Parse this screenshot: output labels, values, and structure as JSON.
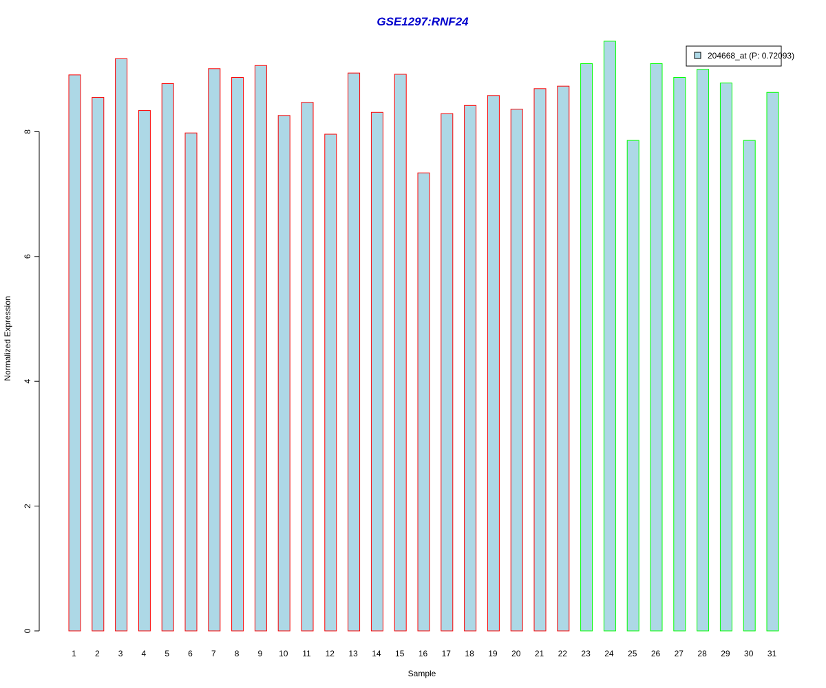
{
  "chart_data": {
    "type": "bar",
    "title": "GSE1297:RNF24",
    "xlabel": "Sample",
    "ylabel": "Normalized Expression",
    "ylim": [
      0,
      9.5
    ],
    "yticks": [
      0,
      2,
      4,
      6,
      8
    ],
    "grid": false,
    "legend": {
      "label": "204668_at (P: 0.72093)",
      "placement": "top-right"
    },
    "colors": {
      "title": "#0000cc",
      "bar_fill": "#add8e6",
      "group_a_border": "#ff0000",
      "group_b_border": "#00ff00"
    },
    "categories": [
      "1",
      "2",
      "3",
      "4",
      "5",
      "6",
      "7",
      "8",
      "9",
      "10",
      "11",
      "12",
      "13",
      "14",
      "15",
      "16",
      "17",
      "18",
      "19",
      "20",
      "21",
      "22",
      "23",
      "24",
      "25",
      "26",
      "27",
      "28",
      "29",
      "30",
      "31"
    ],
    "values": [
      8.91,
      8.55,
      9.17,
      8.34,
      8.77,
      7.98,
      9.01,
      8.87,
      9.06,
      8.26,
      8.47,
      7.96,
      8.94,
      8.31,
      8.92,
      7.34,
      8.29,
      8.42,
      8.58,
      8.36,
      8.69,
      8.73,
      9.09,
      9.45,
      7.86,
      9.09,
      8.87,
      9.0,
      8.78,
      7.86,
      8.63
    ],
    "group": [
      "a",
      "a",
      "a",
      "a",
      "a",
      "a",
      "a",
      "a",
      "a",
      "a",
      "a",
      "a",
      "a",
      "a",
      "a",
      "a",
      "a",
      "a",
      "a",
      "a",
      "a",
      "a",
      "b",
      "b",
      "b",
      "b",
      "b",
      "b",
      "b",
      "b",
      "b"
    ]
  }
}
